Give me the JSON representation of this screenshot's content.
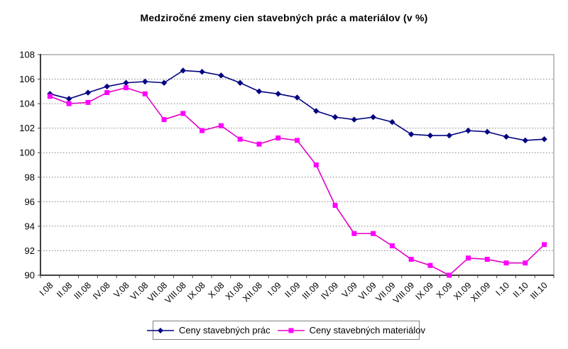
{
  "page": {
    "background": "#FFFFFF"
  },
  "chart_data": {
    "type": "line",
    "title": "Medziročné zmeny cien stavebných prác a materiálov (v %)",
    "categories": [
      "I.08",
      "II.08",
      "III.08",
      "IV.08",
      "V.08",
      "VI.08",
      "VII.08",
      "VIII.08",
      "IX.08",
      "X.08",
      "XI.08",
      "XII.08",
      "I.09",
      "II.09",
      "III.09",
      "IV.09",
      "V.09",
      "VI.09",
      "VII.09",
      "VIII.09",
      "IX.09",
      "X.09",
      "XI.09",
      "XII.09",
      "I.10",
      "II.10",
      "III.10"
    ],
    "series": [
      {
        "name": "Ceny stavebných prác",
        "marker": "diamond",
        "color": "#000080",
        "values": [
          104.8,
          104.4,
          104.9,
          105.4,
          105.7,
          105.8,
          105.7,
          106.7,
          106.6,
          106.3,
          105.7,
          105.0,
          104.8,
          104.5,
          103.4,
          102.9,
          102.7,
          102.9,
          102.5,
          101.5,
          101.4,
          101.4,
          101.8,
          101.7,
          101.3,
          101.0,
          101.1
        ]
      },
      {
        "name": "Ceny stavebných materiálov",
        "marker": "square",
        "color": "#FF00FF",
        "line_color": "#E400C8",
        "values": [
          104.6,
          104.0,
          104.1,
          104.9,
          105.3,
          104.8,
          102.7,
          103.2,
          101.8,
          102.2,
          101.1,
          100.7,
          101.2,
          101.0,
          99.0,
          95.7,
          93.4,
          93.4,
          92.4,
          91.3,
          90.8,
          90.0,
          91.4,
          91.3,
          91.0,
          91.0,
          92.5
        ]
      }
    ],
    "xlabel": "",
    "ylabel": "",
    "ylim": [
      90,
      108
    ],
    "ytick_step": 2,
    "y_ticks": [
      90,
      92,
      94,
      96,
      98,
      100,
      102,
      104,
      106,
      108
    ],
    "grid": "horizontal-dotted",
    "grid_color": "#808080",
    "axis_color": "#404040",
    "border_color": "#808080",
    "legend_position": "bottom"
  }
}
